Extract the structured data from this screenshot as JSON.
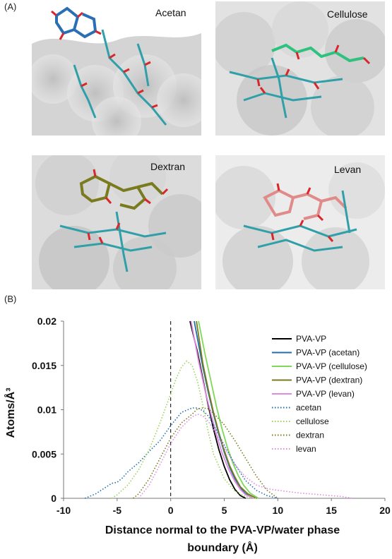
{
  "panels": {
    "a_label": "(A)",
    "b_label": "(B)",
    "molecules": [
      {
        "name": "Acetan",
        "color": "#2a6fb5"
      },
      {
        "name": "Cellulose",
        "color": "#2ec27e"
      },
      {
        "name": "Dextran",
        "color": "#7a7a1e"
      },
      {
        "name": "Levan",
        "color": "#e08a8a"
      }
    ]
  },
  "chart_data": {
    "type": "line",
    "xlabel": "Distance normal to the PVA-VP/water phase boundary (Å)",
    "xlabel_lines": [
      "Distance normal to the PVA-VP/water phase",
      "boundary (Å)"
    ],
    "ylabel": "Atoms/Å³",
    "xlim": [
      -10,
      20
    ],
    "ylim": [
      0,
      0.02
    ],
    "x_ticks": [
      -10,
      -5,
      0,
      5,
      10,
      15,
      20
    ],
    "y_ticks": [
      0,
      0.005,
      0.01,
      0.015,
      0.02
    ],
    "y_tick_labels": [
      "0",
      "0.005",
      "0.01",
      "0.015",
      "0.02"
    ],
    "vertical_reference_x": 0,
    "grid": false,
    "legend_position": "right",
    "series": [
      {
        "name": "PVA-VP",
        "color": "#000000",
        "style": "solid",
        "x": [
          1.8,
          2.5,
          3,
          3.5,
          4,
          4.5,
          5,
          5.5,
          6,
          6.5,
          7
        ],
        "y": [
          0.02,
          0.0165,
          0.0135,
          0.0105,
          0.0078,
          0.0055,
          0.0036,
          0.0021,
          0.001,
          0.0003,
          0
        ]
      },
      {
        "name": "PVA-VP (acetan)",
        "color": "#1f6fb0",
        "style": "solid",
        "x": [
          2.2,
          3,
          3.5,
          4,
          4.5,
          5,
          5.5,
          6,
          6.5,
          7,
          8
        ],
        "y": [
          0.02,
          0.0148,
          0.012,
          0.0095,
          0.0072,
          0.0052,
          0.0035,
          0.0022,
          0.0012,
          0.0005,
          0
        ]
      },
      {
        "name": "PVA-VP (cellulose)",
        "color": "#7ed957",
        "style": "solid",
        "x": [
          2.6,
          3.2,
          3.8,
          4.3,
          4.8,
          5.3,
          5.8,
          6.3,
          6.8,
          7.4,
          8.2
        ],
        "y": [
          0.02,
          0.0163,
          0.013,
          0.0102,
          0.0078,
          0.0057,
          0.004,
          0.0026,
          0.0015,
          0.0006,
          0
        ]
      },
      {
        "name": "PVA-VP (dextran)",
        "color": "#7a7a1e",
        "style": "solid",
        "x": [
          2.4,
          3,
          3.5,
          4,
          4.5,
          5,
          5.5,
          6,
          6.5,
          7.2,
          8
        ],
        "y": [
          0.02,
          0.0152,
          0.0123,
          0.0097,
          0.0074,
          0.0054,
          0.0037,
          0.0024,
          0.0013,
          0.0005,
          0
        ]
      },
      {
        "name": "PVA-VP (levan)",
        "color": "#e08ae0",
        "style": "solid",
        "x": [
          1.9,
          2.6,
          3.2,
          3.8,
          4.3,
          4.8,
          5.4,
          6,
          6.5,
          7,
          7.8
        ],
        "y": [
          0.02,
          0.0155,
          0.0122,
          0.0093,
          0.0071,
          0.0051,
          0.0033,
          0.0019,
          0.001,
          0.0004,
          0
        ]
      },
      {
        "name": "acetan",
        "color": "#1f6fb0",
        "style": "dotted",
        "x": [
          -8,
          -7,
          -6,
          -5.5,
          -5,
          -4.5,
          -4,
          -3,
          -2,
          -1,
          0,
          1,
          2,
          2.5,
          3,
          3.5,
          4,
          5,
          6,
          7,
          8,
          9,
          10
        ],
        "y": [
          0,
          0.0005,
          0.0013,
          0.0017,
          0.0018,
          0.0023,
          0.003,
          0.004,
          0.0053,
          0.0065,
          0.0082,
          0.0097,
          0.0102,
          0.0102,
          0.0099,
          0.0093,
          0.0083,
          0.006,
          0.0038,
          0.002,
          0.0009,
          0.0003,
          0
        ]
      },
      {
        "name": "cellulose",
        "color": "#9bd45a",
        "style": "dotted",
        "x": [
          -5.5,
          -5,
          -4,
          -3,
          -2,
          -1,
          0,
          0.5,
          1,
          1.5,
          2,
          2.5,
          3,
          3.5,
          4,
          5,
          6,
          7,
          8
        ],
        "y": [
          0,
          0.0004,
          0.0015,
          0.0032,
          0.0055,
          0.0085,
          0.0118,
          0.0135,
          0.0148,
          0.0155,
          0.015,
          0.0132,
          0.0105,
          0.0075,
          0.005,
          0.0022,
          0.0008,
          0.0002,
          0
        ]
      },
      {
        "name": "dextran",
        "color": "#7a7a1e",
        "style": "dotted",
        "x": [
          -3.5,
          -3,
          -2,
          -1,
          0,
          1,
          2,
          2.5,
          3,
          3.5,
          4,
          5,
          6,
          7,
          8,
          9,
          10
        ],
        "y": [
          0,
          0.0005,
          0.0022,
          0.0045,
          0.0068,
          0.0085,
          0.0095,
          0.0101,
          0.0102,
          0.0101,
          0.0096,
          0.0083,
          0.0065,
          0.0045,
          0.0025,
          0.0009,
          0
        ]
      },
      {
        "name": "levan",
        "color": "#e08ae0",
        "style": "dotted",
        "x": [
          -3,
          -2,
          -1,
          0,
          1,
          2,
          2.5,
          3,
          3.5,
          4,
          5,
          6,
          7,
          8,
          9,
          10,
          12,
          14,
          16,
          17
        ],
        "y": [
          0,
          0.0015,
          0.0038,
          0.0062,
          0.008,
          0.0092,
          0.0095,
          0.0093,
          0.0087,
          0.0078,
          0.0057,
          0.0038,
          0.0024,
          0.0015,
          0.0011,
          0.0009,
          0.0006,
          0.0004,
          0.0002,
          0
        ]
      }
    ]
  }
}
